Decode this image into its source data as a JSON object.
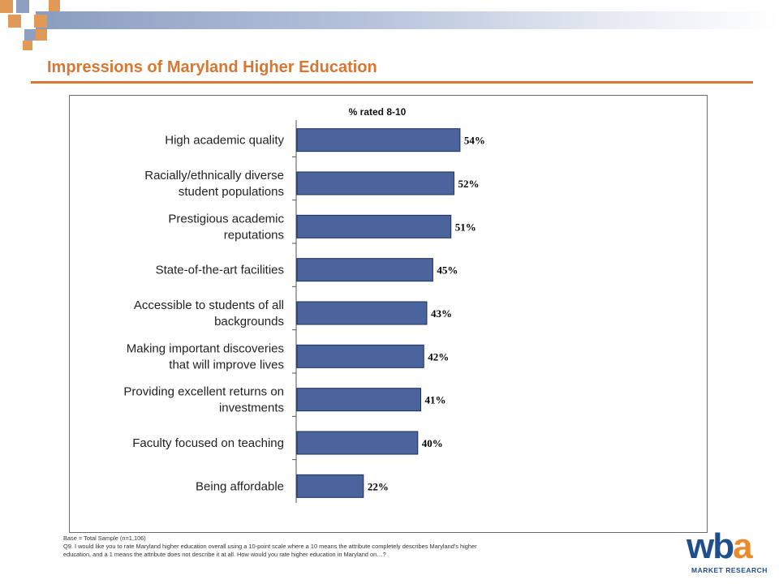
{
  "slide": {
    "title": "Impressions of Maryland Higher Education",
    "colors": {
      "title": "#d9762f",
      "bar": "#4a649e",
      "bar_edge": "#1f2d5c"
    }
  },
  "chart_data": {
    "type": "bar",
    "orientation": "horizontal",
    "subtitle": "% rated 8-10",
    "categories": [
      "High academic quality",
      "Racially/ethnically diverse student populations",
      "Prestigious academic reputations",
      "State-of-the-art facilities",
      "Accessible to students of all backgrounds",
      "Making important discoveries that will improve lives",
      "Providing excellent returns on investments",
      "Faculty focused on teaching",
      "Being affordable"
    ],
    "category_lines": [
      [
        "High academic quality"
      ],
      [
        "Racially/ethnically diverse",
        "student populations"
      ],
      [
        "Prestigious academic",
        "reputations"
      ],
      [
        "State-of-the-art facilities"
      ],
      [
        "Accessible to students of all",
        "backgrounds"
      ],
      [
        "Making important discoveries",
        "that will improve lives"
      ],
      [
        "Providing excellent returns on",
        "investments"
      ],
      [
        "Faculty focused on teaching"
      ],
      [
        "Being affordable"
      ]
    ],
    "values": [
      54,
      52,
      51,
      45,
      43,
      42,
      41,
      40,
      22
    ],
    "value_labels": [
      "54%",
      "52%",
      "51%",
      "45%",
      "43%",
      "42%",
      "41%",
      "40%",
      "22%"
    ],
    "xlim": [
      0,
      100
    ],
    "grid": false,
    "legend": "none"
  },
  "footnotes": {
    "base": "Base = Total Sample (n=1,106)",
    "question_line1": "Q9. I would like you to rate Maryland higher education overall using a 10-point scale where a 10 means the attribute completely describes Maryland's higher",
    "question_line2": "education, and a 1 means the attribute does not describe it at all.  How would you rate higher education in Maryland on…?"
  },
  "logo": {
    "letters": [
      "w",
      "b",
      "a"
    ],
    "subtitle": "MARKET RESEARCH",
    "colors": [
      "#1f4e8c",
      "#1f4e8c",
      "#e98a2b"
    ]
  }
}
